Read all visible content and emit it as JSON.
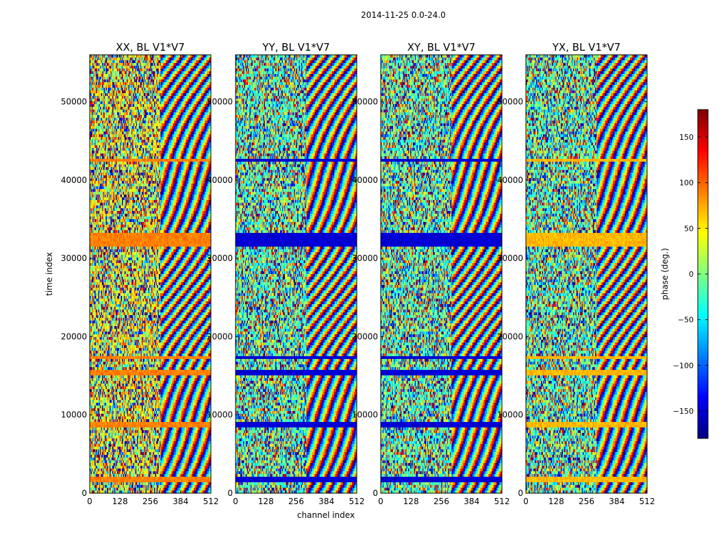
{
  "suptitle": "2014-11-25 0.0-24.0",
  "xlabel": "channel index",
  "ylabel": "time index",
  "colorbar": {
    "label": "phase (deg.)",
    "range": [
      -180,
      180
    ],
    "ticks": [
      -150,
      -100,
      -50,
      0,
      50,
      100,
      150
    ],
    "tick_labels": [
      "−150",
      "−100",
      "−50",
      "0",
      "50",
      "100",
      "150"
    ],
    "colormap": "jet",
    "colors": [
      "#00007f",
      "#0000ff",
      "#007fff",
      "#00ffff",
      "#7fff7f",
      "#ffff00",
      "#ff7f00",
      "#ff0000",
      "#7f0000"
    ]
  },
  "chart_data": {
    "type": "heatmap",
    "x_range": [
      0,
      512
    ],
    "x_ticks": [
      0,
      128,
      256,
      384,
      512
    ],
    "y_range": [
      0,
      56000
    ],
    "y_ticks": [
      0,
      10000,
      20000,
      30000,
      40000,
      50000
    ],
    "value": "phase (deg.)",
    "panels": [
      {
        "title": "XX, BL V1*V7",
        "band_value": 90,
        "bands": [
          [
            1500,
            2200
          ],
          [
            8600,
            9100
          ],
          [
            15400,
            16000
          ],
          [
            17200,
            17700
          ],
          [
            31800,
            33300
          ],
          [
            42400,
            42900
          ]
        ]
      },
      {
        "title": "YY, BL V1*V7",
        "band_value": -150,
        "bands": [
          [
            1500,
            2200
          ],
          [
            8600,
            9100
          ],
          [
            15400,
            16000
          ],
          [
            17200,
            17700
          ],
          [
            31800,
            33300
          ],
          [
            42400,
            42900
          ]
        ]
      },
      {
        "title": "XY, BL V1*V7",
        "band_value": -150,
        "bands": [
          [
            1500,
            2200
          ],
          [
            8600,
            9100
          ],
          [
            15400,
            16000
          ],
          [
            17200,
            17700
          ],
          [
            31800,
            33300
          ],
          [
            42400,
            42900
          ]
        ]
      },
      {
        "title": "YX, BL V1*V7",
        "band_value": 70,
        "bands": [
          [
            1500,
            2200
          ],
          [
            8600,
            9100
          ],
          [
            15400,
            16000
          ],
          [
            17200,
            17700
          ],
          [
            31800,
            33300
          ],
          [
            42400,
            42900
          ]
        ]
      }
    ]
  }
}
